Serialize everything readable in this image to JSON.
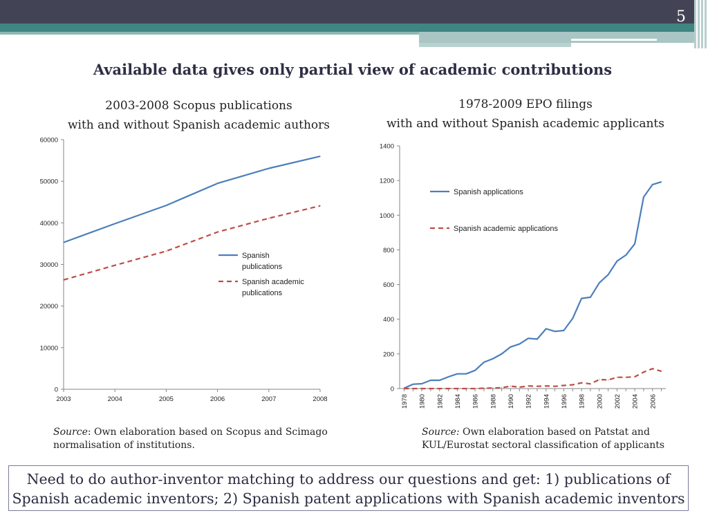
{
  "page_number": "5",
  "title": "Available data gives only partial view of academic contributions",
  "left": {
    "subtitle_line1": "2003-2008 Scopus publications",
    "subtitle_line2": "with and without Spanish academic authors",
    "source_label": "Source",
    "source_text1": ": Own elaboration based on Scopus and Scimago",
    "source_text2": "normalisation of institutions."
  },
  "right": {
    "subtitle_line1": "1978-2009 EPO filings",
    "subtitle_line2": "with and without Spanish academic applicants",
    "source_label": "Source:",
    "source_text1": " Own elaboration based on Patstat and",
    "source_text2": "KUL/Eurostat sectoral classification of applicants"
  },
  "conclusion": {
    "line1": "Need to do author-inventor matching to address our questions and get: 1)  publications of",
    "line2": "Spanish academic inventors; 2) Spanish patent applications with Spanish academic inventors"
  },
  "colors": {
    "blue": "#4a7ebb",
    "red": "#be4b48"
  },
  "chart_data": [
    {
      "type": "line",
      "title": "2003-2008 Scopus publications with and without Spanish academic authors",
      "x": [
        2003,
        2004,
        2005,
        2006,
        2007,
        2008
      ],
      "x_labels": [
        "2003",
        "2004",
        "2005",
        "2006",
        "2007",
        "2008"
      ],
      "ylim": [
        0,
        60000
      ],
      "y_ticks": [
        0,
        10000,
        20000,
        30000,
        40000,
        50000,
        60000
      ],
      "series": [
        {
          "name": "Spanish publications",
          "legend_lines": [
            "Spanish",
            "publications"
          ],
          "style": "solid",
          "color": "#4a7ebb",
          "values": [
            35300,
            39800,
            44200,
            49500,
            53100,
            56000
          ]
        },
        {
          "name": "Spanish academic publications",
          "legend_lines": [
            "Spanish academic",
            "publications"
          ],
          "style": "dashed",
          "color": "#be4b48",
          "values": [
            26300,
            29800,
            33200,
            37800,
            41100,
            44100
          ]
        }
      ],
      "legend_position": "center-right"
    },
    {
      "type": "line",
      "title": "1978-2009 EPO filings with and without Spanish academic applicants",
      "x": [
        1978,
        1979,
        1980,
        1981,
        1982,
        1983,
        1984,
        1985,
        1986,
        1987,
        1988,
        1989,
        1990,
        1991,
        1992,
        1993,
        1994,
        1995,
        1996,
        1997,
        1998,
        1999,
        2000,
        2001,
        2002,
        2003,
        2004,
        2005,
        2006,
        2007
      ],
      "x_labels": [
        "1978",
        "1980",
        "1982",
        "1984",
        "1986",
        "1988",
        "1990",
        "1992",
        "1994",
        "1996",
        "1998",
        "2000",
        "2002",
        "2004",
        "2006"
      ],
      "ylim": [
        0,
        1400
      ],
      "y_ticks": [
        0,
        200,
        400,
        600,
        800,
        1000,
        1200,
        1400
      ],
      "series": [
        {
          "name": "Spanish applications",
          "legend_lines": [
            "Spanish applications"
          ],
          "style": "solid",
          "color": "#4a7ebb",
          "values": [
            2,
            25,
            28,
            48,
            48,
            68,
            85,
            85,
            105,
            152,
            172,
            200,
            240,
            257,
            290,
            285,
            345,
            330,
            335,
            405,
            520,
            527,
            610,
            657,
            735,
            770,
            835,
            1105,
            1177,
            1192
          ]
        },
        {
          "name": "Spanish academic applications",
          "legend_lines": [
            "Spanish academic applications"
          ],
          "style": "dashed",
          "color": "#be4b48",
          "values": [
            0,
            0,
            0,
            0,
            0,
            0,
            0,
            0,
            0,
            2,
            3,
            5,
            14,
            8,
            15,
            13,
            15,
            13,
            18,
            22,
            33,
            27,
            52,
            50,
            65,
            65,
            68,
            95,
            115,
            100
          ]
        }
      ],
      "legend_position": "top-left"
    }
  ]
}
